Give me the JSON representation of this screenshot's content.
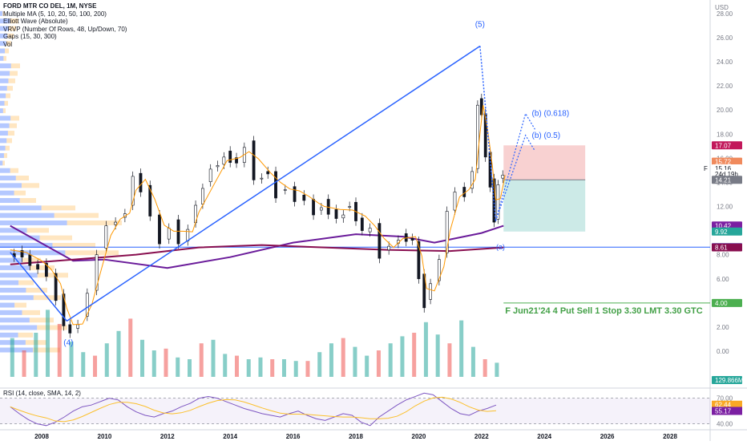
{
  "header": {
    "title": "FORD MTR CO DEL, 1M, NYSE",
    "indicators": [
      "Multiple MA (5, 10, 20, 50, 100, 200)",
      "Elliott Wave (Absolute)",
      "VRVP (Number Of Rows, 48, Up/Down, 70)",
      "Gaps (15, 30, 300)",
      "Vol"
    ],
    "rsi_label": "RSI (14, close, SMA, 14, 2)",
    "currency": "USD",
    "symbol": "F"
  },
  "chart_data": {
    "type": "candlestick",
    "title": "FORD MTR CO DEL, 1M, NYSE",
    "ylabel": "USD",
    "ylim": [
      -2,
      29
    ],
    "y_ticks": [
      "28.00",
      "26.00",
      "24.00",
      "22.00",
      "20.00",
      "18.00",
      "16.00",
      "14.00",
      "12.00",
      "10.00",
      "8.00",
      "6.00",
      "4.00",
      "2.00",
      "0.00"
    ],
    "x_ticks": [
      "2008",
      "2010",
      "2012",
      "2014",
      "2016",
      "2018",
      "2020",
      "2022",
      "2024",
      "2026",
      "2028"
    ],
    "price_path": [
      [
        2007.0,
        8.4
      ],
      [
        2007.5,
        8.0
      ],
      [
        2008.0,
        7.0
      ],
      [
        2008.3,
        6.6
      ],
      [
        2008.6,
        4.6
      ],
      [
        2008.8,
        2.5
      ],
      [
        2009.0,
        1.9
      ],
      [
        2009.3,
        2.6
      ],
      [
        2009.6,
        5.2
      ],
      [
        2009.9,
        8.4
      ],
      [
        2010.2,
        10.8
      ],
      [
        2010.5,
        11.1
      ],
      [
        2010.8,
        11.8
      ],
      [
        2011.0,
        14.9
      ],
      [
        2011.3,
        13.6
      ],
      [
        2011.6,
        11.6
      ],
      [
        2011.9,
        9.3
      ],
      [
        2012.2,
        10.6
      ],
      [
        2012.5,
        9.3
      ],
      [
        2012.8,
        10.5
      ],
      [
        2013.0,
        12.5
      ],
      [
        2013.5,
        15.3
      ],
      [
        2013.9,
        16.3
      ],
      [
        2014.3,
        15.8
      ],
      [
        2014.6,
        17.3
      ],
      [
        2014.9,
        14.6
      ],
      [
        2015.3,
        14.9
      ],
      [
        2015.6,
        13.1
      ],
      [
        2015.9,
        13.8
      ],
      [
        2016.2,
        12.8
      ],
      [
        2016.5,
        12.9
      ],
      [
        2016.8,
        11.7
      ],
      [
        2017.0,
        12.3
      ],
      [
        2017.5,
        11.2
      ],
      [
        2017.9,
        12.2
      ],
      [
        2018.3,
        10.2
      ],
      [
        2018.6,
        10.6
      ],
      [
        2018.9,
        8.1
      ],
      [
        2019.2,
        9.1
      ],
      [
        2019.5,
        9.6
      ],
      [
        2019.9,
        9.4
      ],
      [
        2020.1,
        6.4
      ],
      [
        2020.25,
        4.0
      ],
      [
        2020.5,
        6.0
      ],
      [
        2020.8,
        8.0
      ],
      [
        2021.0,
        12.0
      ],
      [
        2021.3,
        13.6
      ],
      [
        2021.6,
        13.2
      ],
      [
        2021.8,
        15.3
      ],
      [
        2021.95,
        20.8
      ],
      [
        2022.05,
        20.0
      ],
      [
        2022.2,
        16.5
      ],
      [
        2022.35,
        14.0
      ],
      [
        2022.45,
        11.1
      ],
      [
        2022.6,
        14.2
      ],
      [
        2022.75,
        15.0
      ]
    ],
    "volume": [
      2.2,
      1.5,
      2.5,
      3.8,
      3.0,
      2.0,
      1.4,
      1.2,
      1.9,
      2.6,
      3.3,
      2.1,
      1.5,
      1.6,
      1.1,
      1.0,
      1.9,
      2.1,
      1.3,
      1.2,
      1.0,
      1.1,
      1.0,
      1.0,
      0.9,
      0.9,
      1.4,
      1.9,
      2.2,
      1.7,
      1.2,
      1.5,
      1.9,
      2.3,
      2.5,
      3.1,
      2.4,
      1.9,
      3.2,
      1.7,
      1.0,
      0.8
    ],
    "elliott_wave": {
      "wave_4": {
        "x": 2008.8,
        "y": 2.5,
        "label": "(4)"
      },
      "wave_5": {
        "x": 2021.95,
        "y": 25.3,
        "label": "(5)"
      },
      "wave_a": {
        "x": 2022.45,
        "y": 10.8,
        "label": "(a)"
      },
      "targets": [
        {
          "label": "(b) (0.618)",
          "x": 2023.6,
          "y": 19.7
        },
        {
          "label": "(b) (0.5)",
          "x": 2023.6,
          "y": 17.9
        }
      ]
    },
    "ma_lines": [
      {
        "name": "MA 100",
        "color": "#6a1b9a",
        "points": [
          [
            2007.0,
            10.4
          ],
          [
            2009.0,
            7.5
          ],
          [
            2010.0,
            7.6
          ],
          [
            2012.0,
            6.9
          ],
          [
            2014.0,
            7.8
          ],
          [
            2016.0,
            9.0
          ],
          [
            2018.0,
            9.7
          ],
          [
            2019.5,
            9.5
          ],
          [
            2020.5,
            9.0
          ],
          [
            2022.0,
            9.8
          ],
          [
            2022.7,
            10.4
          ]
        ]
      },
      {
        "name": "MA 200",
        "color": "#880e4f",
        "points": [
          [
            2007.0,
            7.2
          ],
          [
            2009.0,
            7.6
          ],
          [
            2011.0,
            8.0
          ],
          [
            2013.0,
            8.6
          ],
          [
            2015.0,
            8.8
          ],
          [
            2017.0,
            8.6
          ],
          [
            2019.0,
            8.4
          ],
          [
            2021.0,
            8.3
          ],
          [
            2022.7,
            8.6
          ]
        ]
      }
    ],
    "horizontal_line": {
      "y": 8.63,
      "color": "#2962ff"
    },
    "trade_box": {
      "x0": 2022.7,
      "x1": 2025.3,
      "stop": 17.07,
      "entry": 14.21,
      "target": 9.92
    },
    "order_text": "F Jun21'24 4 Put Sell 1 Stop 3.30 LMT 3.30 GTC",
    "price_labels": [
      {
        "value": "17.07",
        "y": 17.07,
        "bg": "#c2185b"
      },
      {
        "value": "15.72",
        "y": 15.72,
        "bg": "#f08a5d"
      },
      {
        "value": "15.16",
        "y": 15.16,
        "bg": "#ffffff"
      },
      {
        "value": "24d 19h",
        "y": 14.7,
        "bg": "#ffffff"
      },
      {
        "value": "14.21",
        "y": 14.21,
        "bg": "#787b86"
      },
      {
        "value": "10.42",
        "y": 10.42,
        "bg": "#7b1fa2"
      },
      {
        "value": "9.92",
        "y": 9.92,
        "bg": "#26a69a"
      },
      {
        "value": "8.63",
        "y": 8.63,
        "bg": "#2962ff"
      },
      {
        "value": "8.61",
        "y": 8.61,
        "bg": "#880e4f"
      },
      {
        "value": "4.00",
        "y": 4.0,
        "bg": "#4caf50"
      },
      {
        "value": "129.866M",
        "y": -2.2,
        "bg": "#26a69a"
      }
    ],
    "rsi": {
      "ylim": [
        35,
        80
      ],
      "y_ticks": [
        "70.00",
        "40.00"
      ],
      "labels": [
        {
          "value": "62.44",
          "bg": "#f9a825",
          "y": 62.44
        },
        {
          "value": "55.17",
          "bg": "#7b1fa2",
          "y": 55.17
        }
      ],
      "values": [
        60,
        52,
        45,
        40,
        38,
        42,
        48,
        55,
        60,
        62,
        66,
        70,
        68,
        60,
        54,
        50,
        48,
        52,
        55,
        60,
        64,
        70,
        72,
        70,
        66,
        62,
        58,
        55,
        52,
        50,
        48,
        52,
        55,
        50,
        46,
        44,
        48,
        52,
        50,
        42,
        38,
        48,
        55,
        62,
        68,
        72,
        76,
        74,
        66,
        58,
        52,
        50,
        55,
        58,
        62
      ]
    }
  }
}
